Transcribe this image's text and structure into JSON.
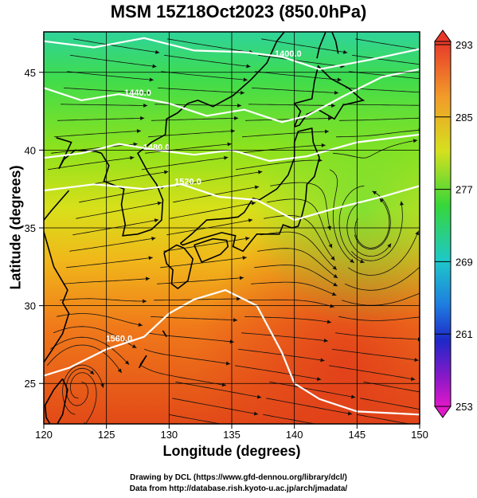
{
  "title": "MSM 15Z18Oct2023 (850.0hPa)",
  "x_axis": {
    "label": "Longitude (degrees)",
    "range": [
      120,
      150
    ],
    "ticks": [
      "120",
      "125",
      "130",
      "135",
      "140",
      "145",
      "150"
    ]
  },
  "y_axis": {
    "label": "Latitude  (degrees)",
    "range": [
      22.4,
      47.6
    ],
    "ticks": [
      "25",
      "30",
      "35",
      "40",
      "45"
    ]
  },
  "colorbar": {
    "ticks": [
      "293",
      "285",
      "277",
      "269",
      "261",
      "253"
    ],
    "range": [
      253,
      293
    ]
  },
  "contour_labels": [
    {
      "text": "1400.0",
      "lon": 139.5,
      "lat": 46.0
    },
    {
      "text": "1440.0",
      "lon": 127.5,
      "lat": 43.5
    },
    {
      "text": "1480.0",
      "lon": 129.0,
      "lat": 40.0
    },
    {
      "text": "1520.0",
      "lon": 131.5,
      "lat": 37.8
    },
    {
      "text": "1560.0",
      "lon": 126.0,
      "lat": 27.7
    }
  ],
  "credits": [
    "Drawing by DCL (https://www.gfd-dennou.org/library/dcl/)",
    "Data from http://database.rish.kyoto-u.ac.jp/arch/jmadata/"
  ]
}
